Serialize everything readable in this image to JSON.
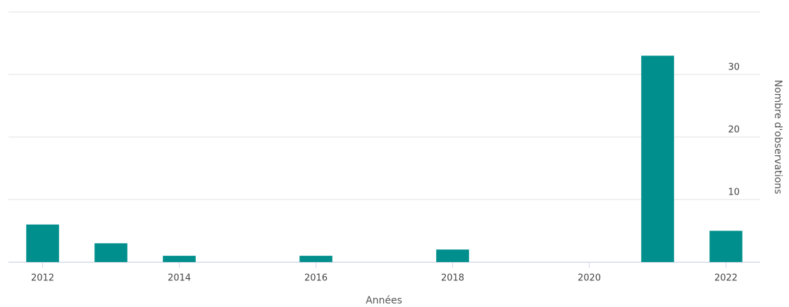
{
  "chart_data": {
    "type": "bar",
    "x": [
      2012,
      2013,
      2014,
      2016,
      2018,
      2021,
      2022
    ],
    "values": [
      6,
      3,
      1,
      1,
      2,
      33,
      5
    ],
    "color": "#008f8c",
    "xlim": [
      2011.5,
      2022.5
    ],
    "xticks": [
      2012,
      2014,
      2016,
      2018,
      2020,
      2022
    ],
    "ylim": [
      0,
      40
    ],
    "yticks": [
      0,
      10,
      20,
      30
    ],
    "x_label": "Années",
    "y_label": "Nombre d'observations",
    "grid": true,
    "y_axis_side": "right"
  }
}
